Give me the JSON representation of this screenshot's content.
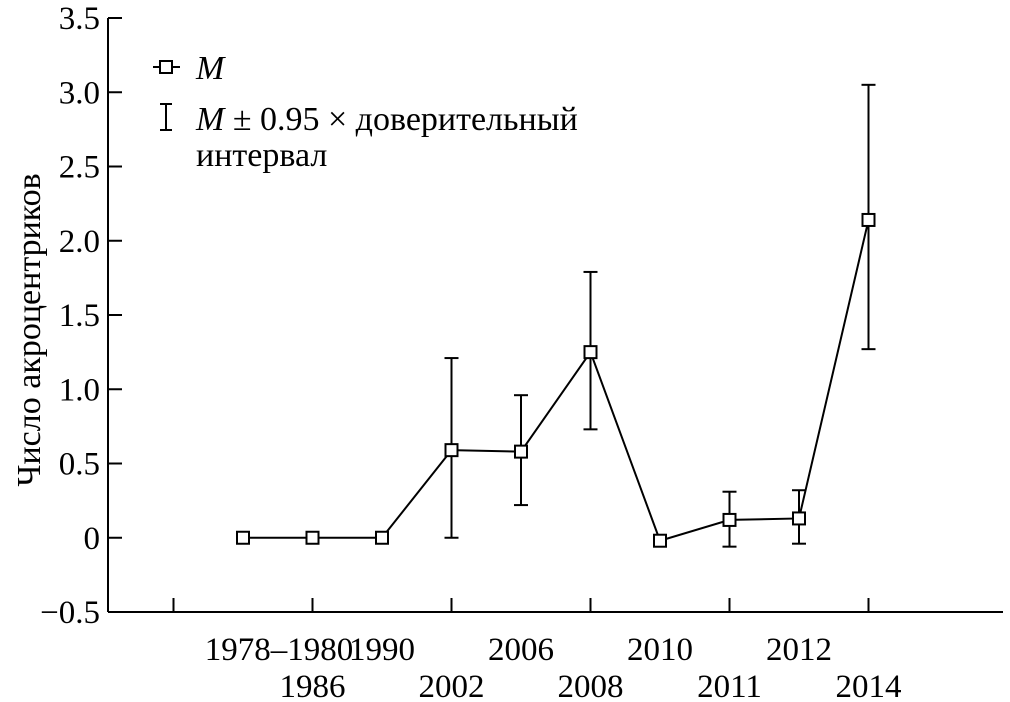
{
  "chart_data": {
    "type": "line",
    "title": "",
    "xlabel": "",
    "ylabel": "Число акроцентриков",
    "ylim": [
      -0.5,
      3.5
    ],
    "yticks": [
      "−0.5",
      "0",
      "0.5",
      "1.0",
      "1.5",
      "2.0",
      "2.5",
      "3.0",
      "3.5"
    ],
    "ytick_values": [
      -0.5,
      0,
      0.5,
      1.0,
      1.5,
      2.0,
      2.5,
      3.0,
      3.5
    ],
    "categories": [
      "1978–1980",
      "1986",
      "1990",
      "2002",
      "2006",
      "2008",
      "2010",
      "2011",
      "2012",
      "2014"
    ],
    "category_labels_top": [
      "1978–1980",
      "",
      "1990",
      "",
      "2006",
      "",
      "2010",
      "",
      "2012",
      ""
    ],
    "category_labels_bottom": [
      "",
      "1986",
      "",
      "2002",
      "",
      "2008",
      "",
      "2011",
      "",
      "2014"
    ],
    "series": [
      {
        "name": "M",
        "marker": "square",
        "values": [
          0.0,
          0.0,
          0.0,
          0.59,
          0.58,
          1.25,
          -0.02,
          0.12,
          0.13,
          2.14
        ],
        "ci_low": [
          null,
          null,
          null,
          0.0,
          0.22,
          0.73,
          null,
          -0.06,
          -0.04,
          1.27
        ],
        "ci_high": [
          null,
          null,
          null,
          1.21,
          0.96,
          1.79,
          null,
          0.31,
          0.32,
          3.05
        ]
      }
    ],
    "legend": {
      "position": "top-left",
      "entries": [
        {
          "symbol": "square-line",
          "label": "M"
        },
        {
          "symbol": "errorbar",
          "label_italic": "M",
          "label_rest": " ± 0.95 × доверительный",
          "label_line2": "интервал"
        }
      ]
    },
    "grid": false
  }
}
